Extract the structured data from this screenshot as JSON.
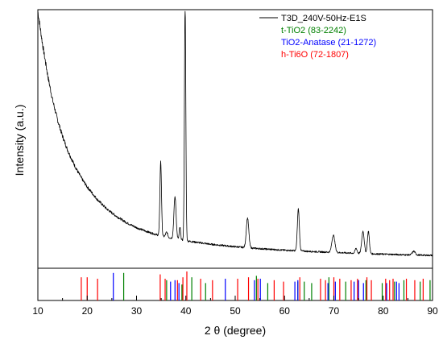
{
  "chart_data": {
    "type": "line",
    "xlabel": "2 θ (degree)",
    "ylabel": "Intensity (a.u.)",
    "xlim": [
      10,
      90
    ],
    "x_ticks": [
      "10",
      "20",
      "30",
      "40",
      "50",
      "60",
      "70",
      "80",
      "90"
    ],
    "grid": false,
    "legend_position": "top-right",
    "pattern": {
      "name": "T3D_240V-50Hz-E1S",
      "color": "#000000",
      "background_points": [
        [
          10,
          1.0
        ],
        [
          11,
          0.86
        ],
        [
          12,
          0.74
        ],
        [
          13,
          0.64
        ],
        [
          14,
          0.56
        ],
        [
          15,
          0.495
        ],
        [
          16,
          0.44
        ],
        [
          17,
          0.395
        ],
        [
          18,
          0.355
        ],
        [
          19,
          0.32
        ],
        [
          20,
          0.29
        ],
        [
          22,
          0.24
        ],
        [
          24,
          0.2
        ],
        [
          26,
          0.17
        ],
        [
          28,
          0.145
        ],
        [
          30,
          0.125
        ],
        [
          32,
          0.11
        ],
        [
          34,
          0.097
        ],
        [
          36,
          0.087
        ],
        [
          38,
          0.079
        ],
        [
          40,
          0.072
        ],
        [
          45,
          0.058
        ],
        [
          50,
          0.048
        ],
        [
          55,
          0.04
        ],
        [
          60,
          0.034
        ],
        [
          65,
          0.029
        ],
        [
          70,
          0.025
        ],
        [
          75,
          0.021
        ],
        [
          80,
          0.018
        ],
        [
          85,
          0.015
        ],
        [
          90,
          0.013
        ]
      ],
      "peaks": [
        {
          "x": 34.9,
          "height": 0.3,
          "width": 0.16
        },
        {
          "x": 36.1,
          "height": 0.02,
          "width": 0.2
        },
        {
          "x": 37.8,
          "height": 0.17,
          "width": 0.22
        },
        {
          "x": 38.8,
          "height": 0.05,
          "width": 0.14
        },
        {
          "x": 39.85,
          "height": 0.96,
          "width": 0.14
        },
        {
          "x": 52.5,
          "height": 0.12,
          "width": 0.25
        },
        {
          "x": 62.8,
          "height": 0.17,
          "width": 0.2
        },
        {
          "x": 69.9,
          "height": 0.07,
          "width": 0.3
        },
        {
          "x": 74.5,
          "height": 0.02,
          "width": 0.2
        },
        {
          "x": 75.9,
          "height": 0.09,
          "width": 0.25
        },
        {
          "x": 77.0,
          "height": 0.09,
          "width": 0.2
        },
        {
          "x": 86.2,
          "height": 0.015,
          "width": 0.3
        }
      ]
    },
    "references": [
      {
        "name": "t-TiO2 (83-2242)",
        "color": "#008000",
        "peaks": [
          {
            "x": 27.4,
            "height": 0.95
          },
          {
            "x": 36.1,
            "height": 0.7
          },
          {
            "x": 39.2,
            "height": 0.55
          },
          {
            "x": 41.2,
            "height": 0.8
          },
          {
            "x": 44.0,
            "height": 0.6
          },
          {
            "x": 54.3,
            "height": 0.85
          },
          {
            "x": 56.6,
            "height": 0.6
          },
          {
            "x": 62.7,
            "height": 0.65
          },
          {
            "x": 64.0,
            "height": 0.65
          },
          {
            "x": 65.5,
            "height": 0.6
          },
          {
            "x": 69.0,
            "height": 0.8
          },
          {
            "x": 72.4,
            "height": 0.65
          },
          {
            "x": 76.5,
            "height": 0.7
          },
          {
            "x": 79.8,
            "height": 0.6
          },
          {
            "x": 82.3,
            "height": 0.65
          },
          {
            "x": 84.2,
            "height": 0.7
          },
          {
            "x": 87.5,
            "height": 0.65
          },
          {
            "x": 89.5,
            "height": 0.7
          }
        ]
      },
      {
        "name": "TiO2-Anatase (21-1272)",
        "color": "#0000ff",
        "peaks": [
          {
            "x": 25.3,
            "height": 0.95
          },
          {
            "x": 36.9,
            "height": 0.65
          },
          {
            "x": 37.8,
            "height": 0.7
          },
          {
            "x": 38.6,
            "height": 0.6
          },
          {
            "x": 48.0,
            "height": 0.75
          },
          {
            "x": 53.9,
            "height": 0.7
          },
          {
            "x": 55.1,
            "height": 0.75
          },
          {
            "x": 62.1,
            "height": 0.65
          },
          {
            "x": 62.7,
            "height": 0.7
          },
          {
            "x": 68.8,
            "height": 0.6
          },
          {
            "x": 70.3,
            "height": 0.65
          },
          {
            "x": 74.1,
            "height": 0.65
          },
          {
            "x": 75.0,
            "height": 0.7
          },
          {
            "x": 76.0,
            "height": 0.6
          },
          {
            "x": 80.7,
            "height": 0.6
          },
          {
            "x": 82.7,
            "height": 0.65
          },
          {
            "x": 83.2,
            "height": 0.6
          }
        ]
      },
      {
        "name": "h-Ti6O (72-1807)",
        "color": "#ff0000",
        "peaks": [
          {
            "x": 18.8,
            "height": 0.8
          },
          {
            "x": 20.0,
            "height": 0.8
          },
          {
            "x": 22.1,
            "height": 0.75
          },
          {
            "x": 34.8,
            "height": 0.9
          },
          {
            "x": 35.8,
            "height": 0.75
          },
          {
            "x": 38.3,
            "height": 0.7
          },
          {
            "x": 39.4,
            "height": 0.8
          },
          {
            "x": 40.2,
            "height": 1.0
          },
          {
            "x": 43.0,
            "height": 0.75
          },
          {
            "x": 45.4,
            "height": 0.7
          },
          {
            "x": 50.5,
            "height": 0.75
          },
          {
            "x": 52.7,
            "height": 0.8
          },
          {
            "x": 54.6,
            "height": 0.75
          },
          {
            "x": 57.9,
            "height": 0.7
          },
          {
            "x": 59.8,
            "height": 0.65
          },
          {
            "x": 63.1,
            "height": 0.8
          },
          {
            "x": 67.3,
            "height": 0.75
          },
          {
            "x": 68.3,
            "height": 0.7
          },
          {
            "x": 70.0,
            "height": 0.8
          },
          {
            "x": 71.2,
            "height": 0.75
          },
          {
            "x": 73.5,
            "height": 0.7
          },
          {
            "x": 74.8,
            "height": 0.75
          },
          {
            "x": 76.7,
            "height": 0.8
          },
          {
            "x": 77.6,
            "height": 0.7
          },
          {
            "x": 80.5,
            "height": 0.75
          },
          {
            "x": 81.3,
            "height": 0.7
          },
          {
            "x": 82.0,
            "height": 0.75
          },
          {
            "x": 84.7,
            "height": 0.75
          },
          {
            "x": 86.4,
            "height": 0.7
          },
          {
            "x": 88.1,
            "height": 0.75
          }
        ]
      }
    ]
  }
}
